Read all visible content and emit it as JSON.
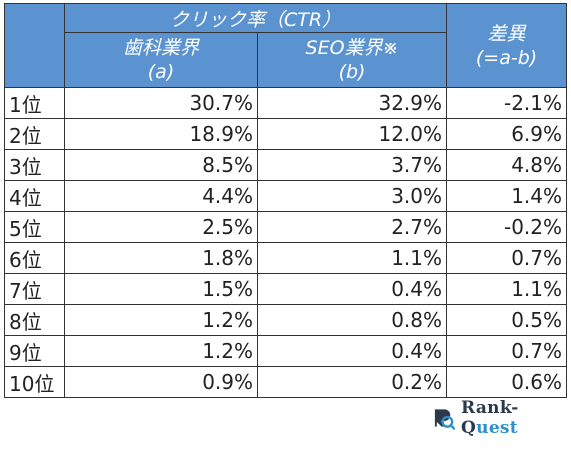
{
  "table": {
    "group_header": "クリック率（CTR）",
    "col_a": [
      "歯科業界",
      "(a)"
    ],
    "col_b": [
      "SEO業界※",
      "(b)"
    ],
    "col_diff": [
      "差異",
      "(=a-b)"
    ],
    "rows": [
      {
        "rank": "1位",
        "a": "30.7%",
        "b": "32.9%",
        "diff": "-2.1%"
      },
      {
        "rank": "2位",
        "a": "18.9%",
        "b": "12.0%",
        "diff": "6.9%"
      },
      {
        "rank": "3位",
        "a": "8.5%",
        "b": "3.7%",
        "diff": "4.8%"
      },
      {
        "rank": "4位",
        "a": "4.4%",
        "b": "3.0%",
        "diff": "1.4%"
      },
      {
        "rank": "5位",
        "a": "2.5%",
        "b": "2.7%",
        "diff": "-0.2%"
      },
      {
        "rank": "6位",
        "a": "1.8%",
        "b": "1.1%",
        "diff": "0.7%"
      },
      {
        "rank": "7位",
        "a": "1.5%",
        "b": "0.4%",
        "diff": "1.1%"
      },
      {
        "rank": "8位",
        "a": "1.2%",
        "b": "0.8%",
        "diff": "0.5%"
      },
      {
        "rank": "9位",
        "a": "1.2%",
        "b": "0.4%",
        "diff": "0.7%"
      },
      {
        "rank": "10位",
        "a": "0.9%",
        "b": "0.2%",
        "diff": "0.6%"
      }
    ]
  },
  "logo": {
    "text_main": "Rank-Q",
    "text_accent": "uest",
    "icon": "rank-quest-logo-icon"
  },
  "colors": {
    "header_bg": "#5b93d0",
    "header_text": "#ffffff",
    "border": "#333333",
    "logo_accent": "#2f8fc8"
  }
}
